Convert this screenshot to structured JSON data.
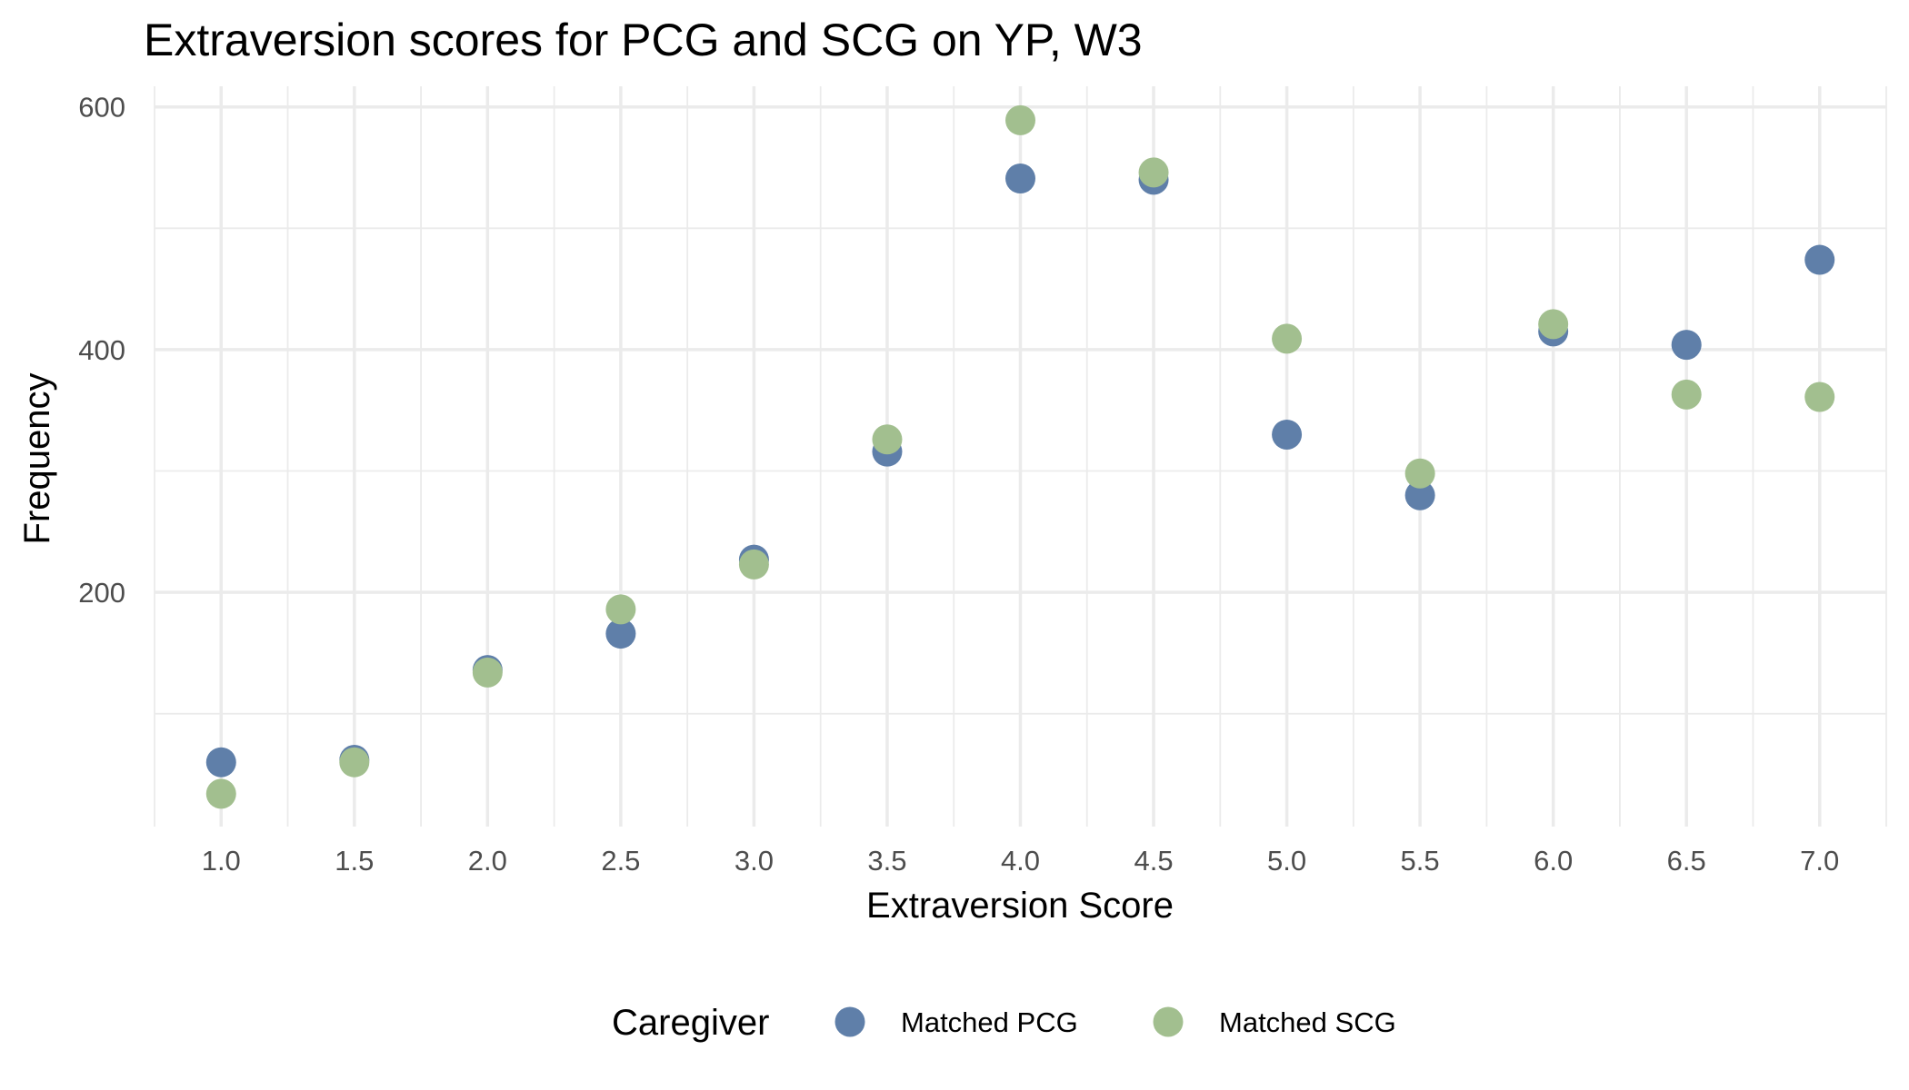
{
  "chart_data": {
    "type": "scatter",
    "title": "Extraversion scores for PCG and SCG on YP, W3",
    "xlabel": "Extraversion Score",
    "ylabel": "Frequency",
    "x": [
      1.0,
      1.5,
      2.0,
      2.5,
      3.0,
      3.5,
      4.0,
      4.5,
      5.0,
      5.5,
      6.0,
      6.5,
      7.0
    ],
    "x_tick_labels": [
      "1.0",
      "1.5",
      "2.0",
      "2.5",
      "3.0",
      "3.5",
      "4.0",
      "4.5",
      "5.0",
      "5.5",
      "6.0",
      "6.5",
      "7.0"
    ],
    "xlim": [
      0.75,
      7.25
    ],
    "y_ticks": [
      200,
      400,
      600
    ],
    "y_tick_labels": [
      "200",
      "400",
      "600"
    ],
    "ylim": [
      7,
      617
    ],
    "grid": true,
    "legend": {
      "title": "Caregiver",
      "position": "bottom"
    },
    "series": [
      {
        "name": "Matched PCG",
        "color": "#5f7fa9",
        "values": [
          60,
          62,
          136,
          166,
          227,
          316,
          541,
          540,
          330,
          280,
          415,
          404,
          474
        ]
      },
      {
        "name": "Matched SCG",
        "color": "#a2bf8f",
        "values": [
          34,
          60,
          134,
          186,
          223,
          326,
          589,
          546,
          409,
          298,
          421,
          363,
          361
        ]
      }
    ]
  }
}
